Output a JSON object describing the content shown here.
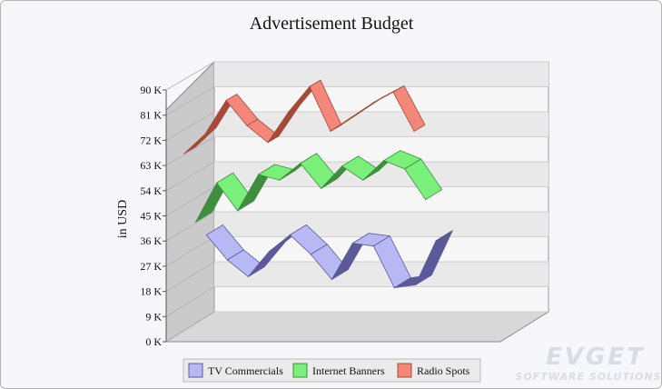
{
  "chart_data": {
    "type": "line",
    "style": "3d-ribbon",
    "title": "Advertisement Budget",
    "ylabel": "in USD",
    "ylim": [
      0,
      90
    ],
    "yticks": [
      0,
      9,
      18,
      27,
      36,
      45,
      54,
      63,
      72,
      81,
      90
    ],
    "ytick_labels": [
      "0 K",
      "9 K",
      "18 K",
      "27 K",
      "36 K",
      "45 K",
      "54 K",
      "63 K",
      "72 K",
      "81 K",
      "90 K"
    ],
    "legend_position": "bottom",
    "grid": true,
    "series": [
      {
        "name": "TV Commercials",
        "color": "#b8b8f4",
        "side_color": "#5a5a9a",
        "values": [
          30,
          21,
          15,
          24,
          30,
          23,
          14,
          27,
          26,
          11,
          12,
          28
        ]
      },
      {
        "name": "Internet Banners",
        "color": "#7af07a",
        "side_color": "#3e8e3e",
        "values": [
          37,
          51,
          41,
          54,
          52,
          58,
          49,
          57,
          52,
          59,
          56,
          45
        ]
      },
      {
        "name": "Radio Spots",
        "color": "#f4877a",
        "side_color": "#a44a38",
        "values": [
          64,
          71,
          83,
          74,
          68,
          79,
          88,
          72,
          77,
          82,
          86,
          72
        ]
      }
    ]
  },
  "watermark": {
    "text": "EVGET",
    "subtext": "SOFTWARE SOLUTIONS"
  }
}
